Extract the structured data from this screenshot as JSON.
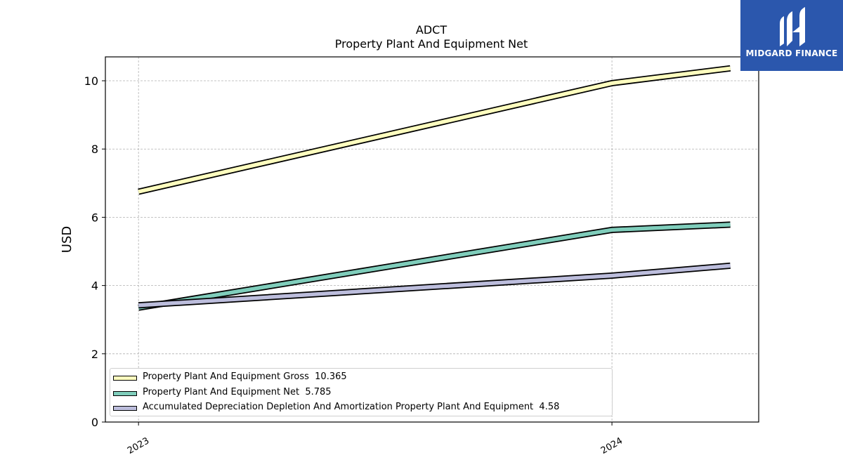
{
  "logo": {
    "text": "MIDGARD FINANCE",
    "background": "#2b57ad"
  },
  "chart_data": {
    "type": "line",
    "title": "ADCT",
    "subtitle": "Property Plant And Equipment Net",
    "xlabel": "",
    "ylabel": "USD",
    "ylim": [
      0,
      10.7
    ],
    "yticks": [
      0,
      2,
      4,
      6,
      8,
      10
    ],
    "x": [
      2023.0,
      2024.0,
      2024.25
    ],
    "xlim": [
      2022.93,
      2024.31
    ],
    "xticks": [
      {
        "value": 2023.0,
        "label": "2023"
      },
      {
        "value": 2024.0,
        "label": "2024"
      }
    ],
    "grid": true,
    "legend_position": "lower-left",
    "series": [
      {
        "name": "Property Plant And Equipment Gross",
        "last_label": "10.365",
        "color": "#ffffbf",
        "values": [
          6.75,
          9.93,
          10.365
        ]
      },
      {
        "name": "Property Plant And Equipment Net",
        "last_label": "5.785",
        "color": "#7fcdbb",
        "values": [
          3.35,
          5.63,
          5.785
        ]
      },
      {
        "name": "Accumulated Depreciation Depletion And Amortization Property Plant And Equipment",
        "last_label": "4.58",
        "color": "#bcbddc",
        "values": [
          3.42,
          4.29,
          4.58
        ]
      }
    ]
  }
}
